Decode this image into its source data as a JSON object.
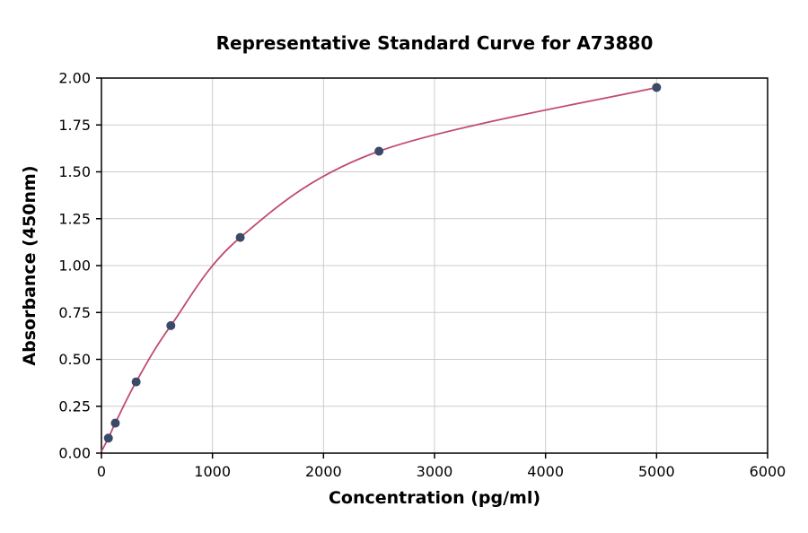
{
  "chart_data": {
    "type": "scatter",
    "title": "Representative Standard Curve for A73880",
    "xlabel": "Concentration (pg/ml)",
    "ylabel": "Absorbance (450nm)",
    "xlim": [
      0,
      6000
    ],
    "ylim": [
      0,
      2.0
    ],
    "grid": true,
    "legend": "none",
    "x_ticks": [
      0,
      1000,
      2000,
      3000,
      4000,
      5000,
      6000
    ],
    "x_tick_labels": [
      "0",
      "1000",
      "2000",
      "3000",
      "4000",
      "5000",
      "6000"
    ],
    "y_ticks": [
      0.0,
      0.25,
      0.5,
      0.75,
      1.0,
      1.25,
      1.5,
      1.75,
      2.0
    ],
    "y_tick_labels": [
      "0.00",
      "0.25",
      "0.50",
      "0.75",
      "1.00",
      "1.25",
      "1.50",
      "1.75",
      "2.00"
    ],
    "curve_start": {
      "x": 0,
      "y": 0.01
    },
    "points": [
      {
        "x": 62.5,
        "y": 0.08
      },
      {
        "x": 125,
        "y": 0.16
      },
      {
        "x": 312.5,
        "y": 0.38
      },
      {
        "x": 625,
        "y": 0.68
      },
      {
        "x": 1250,
        "y": 1.15
      },
      {
        "x": 2500,
        "y": 1.61
      },
      {
        "x": 5000,
        "y": 1.95
      }
    ],
    "colors": {
      "curve": "#c04a70",
      "point": "#3b4a68",
      "grid": "#cccccc",
      "axis": "#000000",
      "background": "#ffffff"
    }
  }
}
